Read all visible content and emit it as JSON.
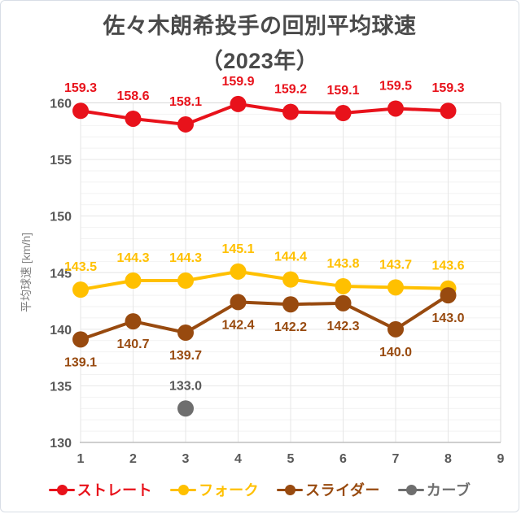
{
  "window": {
    "background": "#FFFFFF",
    "border_color": "#D8DEE6"
  },
  "title": {
    "line1": "佐々木朗希投手の回別平均球速",
    "line2": "（2023年）",
    "color": "#4A4A4A"
  },
  "chart_data": {
    "type": "line",
    "x": [
      1,
      2,
      3,
      4,
      5,
      6,
      7,
      8
    ],
    "series": [
      {
        "name": "ストレート",
        "color": "#E8121B",
        "label_color": "#E8121B",
        "label_position": "above",
        "values": [
          159.3,
          158.6,
          158.1,
          159.9,
          159.2,
          159.1,
          159.5,
          159.3
        ]
      },
      {
        "name": "フォーク",
        "color": "#FFC000",
        "label_color": "#FFC000",
        "label_position": "above",
        "values": [
          143.5,
          144.3,
          144.3,
          145.1,
          144.4,
          143.8,
          143.7,
          143.6
        ]
      },
      {
        "name": "スライダー",
        "color": "#984A0F",
        "label_color": "#984A0F",
        "label_position": "below",
        "values": [
          139.1,
          140.7,
          139.7,
          142.4,
          142.2,
          142.3,
          140.0,
          143.0
        ]
      },
      {
        "name": "カーブ",
        "color": "#6E6E6E",
        "label_color": "#595959",
        "label_position": "above",
        "values": [
          null,
          null,
          133.0,
          null,
          null,
          null,
          null,
          null
        ]
      }
    ],
    "xlabel": "",
    "ylabel": "平均球速 [km/h]",
    "xlim": [
      1,
      9
    ],
    "ylim": [
      130,
      160
    ],
    "x_ticks": [
      1,
      2,
      3,
      4,
      5,
      6,
      7,
      8,
      9
    ],
    "y_ticks": [
      130,
      135,
      140,
      145,
      150,
      155,
      160
    ],
    "y_minor_step": 1,
    "grid": true,
    "legend_position": "bottom"
  },
  "axis_style": {
    "tick_color": "#595959",
    "minor_grid_color": "#F2F2F2",
    "major_grid_color": "#E6E6E6",
    "border_color": "#D9D9D9",
    "axis_line_color": "#BFBFBF"
  }
}
